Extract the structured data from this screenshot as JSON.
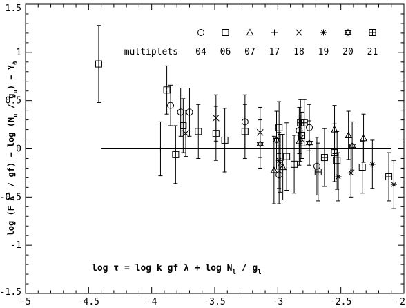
{
  "chart_data": {
    "type": "scatter",
    "xlabel": "log τ = log k gf λ + log N_l / g_l",
    "ylabel": "log (F λ³ / gf) − log (N_u / g_u) − Y₀",
    "xlim": [
      -5,
      -2
    ],
    "ylim": [
      -1.5,
      1.5
    ],
    "x_ticks": [
      -5,
      -4.5,
      -4,
      -3.5,
      -3,
      -2.5,
      -2
    ],
    "x_tick_labels": [
      "-5",
      "-4.5",
      "-4",
      "-3.5",
      "-3",
      "-2.5",
      "-2"
    ],
    "y_ticks": [
      -1.5,
      -1,
      -0.5,
      0,
      0.5,
      1,
      1.5
    ],
    "y_tick_labels": [
      "-1.5",
      "-1",
      "-0.5",
      "0",
      "0.5",
      "1",
      "1.5"
    ],
    "legend": {
      "title": "multiplets",
      "placement": "top-right",
      "entries": [
        {
          "label": "04",
          "marker": "circle"
        },
        {
          "label": "06",
          "marker": "square"
        },
        {
          "label": "07",
          "marker": "triangle"
        },
        {
          "label": "17",
          "marker": "plus"
        },
        {
          "label": "18",
          "marker": "cross"
        },
        {
          "label": "19",
          "marker": "asterisk"
        },
        {
          "label": "20",
          "marker": "star-of-david"
        },
        {
          "label": "21",
          "marker": "boxed-plus"
        }
      ]
    },
    "reference_line": {
      "y": 0,
      "x_from": -4.4,
      "x_to": -2.1
    },
    "series": [
      {
        "name": "04",
        "marker": "circle",
        "points": [
          {
            "x": -3.85,
            "y": 0.45,
            "err": 0.21
          },
          {
            "x": -3.77,
            "y": 0.38,
            "err": 0.25
          },
          {
            "x": -3.7,
            "y": 0.38,
            "err": 0.25
          },
          {
            "x": -3.26,
            "y": 0.28,
            "err": 0.28
          },
          {
            "x": -2.99,
            "y": -0.27,
            "err": 0.3
          },
          {
            "x": -2.83,
            "y": 0.19,
            "err": 0.24
          },
          {
            "x": -2.69,
            "y": -0.18,
            "err": 0.3
          },
          {
            "x": -2.75,
            "y": 0.22,
            "err": 0.24
          }
        ]
      },
      {
        "name": "06",
        "marker": "square",
        "points": [
          {
            "x": -4.42,
            "y": 0.88,
            "err": 0.4
          },
          {
            "x": -3.88,
            "y": 0.61,
            "err": 0.25
          },
          {
            "x": -3.81,
            "y": -0.06,
            "err": 0.3
          },
          {
            "x": -3.75,
            "y": 0.24,
            "err": 0.28
          },
          {
            "x": -3.63,
            "y": 0.18,
            "err": 0.28
          },
          {
            "x": -3.49,
            "y": 0.16,
            "err": 0.28
          },
          {
            "x": -3.42,
            "y": 0.09,
            "err": 0.33
          },
          {
            "x": -3.26,
            "y": 0.18,
            "err": 0.28
          },
          {
            "x": -2.99,
            "y": 0.22,
            "err": 0.27
          },
          {
            "x": -2.93,
            "y": -0.08,
            "err": 0.35
          },
          {
            "x": -2.87,
            "y": -0.16,
            "err": 0.3
          },
          {
            "x": -2.81,
            "y": 0.14,
            "err": 0.24
          },
          {
            "x": -2.55,
            "y": -0.04,
            "err": 0.3
          },
          {
            "x": -2.53,
            "y": -0.12,
            "err": 0.3
          },
          {
            "x": -2.33,
            "y": -0.19,
            "err": 0.27
          }
        ]
      },
      {
        "name": "07",
        "marker": "triangle",
        "points": [
          {
            "x": -3.03,
            "y": -0.22,
            "err": 0.35
          },
          {
            "x": -2.96,
            "y": -0.19,
            "err": 0.34
          },
          {
            "x": -2.55,
            "y": 0.2,
            "err": 0.25
          },
          {
            "x": -2.44,
            "y": 0.14,
            "err": 0.25
          },
          {
            "x": -2.32,
            "y": 0.11,
            "err": 0.25
          },
          {
            "x": -2.83,
            "y": 0.08,
            "err": 0.25
          }
        ]
      },
      {
        "name": "17",
        "marker": "plus",
        "points": [
          {
            "x": -3.93,
            "y": 0.0,
            "err": 0.28
          }
        ]
      },
      {
        "name": "18",
        "marker": "cross",
        "points": [
          {
            "x": -3.73,
            "y": 0.16,
            "err": 0.24
          },
          {
            "x": -3.49,
            "y": 0.32,
            "err": 0.24
          },
          {
            "x": -3.14,
            "y": 0.17,
            "err": 0.26
          },
          {
            "x": -2.98,
            "y": -0.15,
            "err": 0.3
          },
          {
            "x": -2.82,
            "y": 0.11,
            "err": 0.24
          }
        ]
      },
      {
        "name": "19",
        "marker": "asterisk",
        "points": [
          {
            "x": -2.99,
            "y": -0.12,
            "err": 0.29
          },
          {
            "x": -2.52,
            "y": -0.29,
            "err": 0.25
          },
          {
            "x": -2.42,
            "y": -0.25,
            "err": 0.25
          },
          {
            "x": -2.25,
            "y": -0.16,
            "err": 0.25
          },
          {
            "x": -2.08,
            "y": -0.37,
            "err": 0.25
          }
        ]
      },
      {
        "name": "20",
        "marker": "star-of-david",
        "points": [
          {
            "x": -3.14,
            "y": 0.05,
            "err": 0.25
          },
          {
            "x": -3.01,
            "y": 0.09,
            "err": 0.3
          },
          {
            "x": -2.75,
            "y": 0.06,
            "err": 0.23
          },
          {
            "x": -2.41,
            "y": 0.03,
            "err": 0.25
          }
        ]
      },
      {
        "name": "21",
        "marker": "boxed-plus",
        "points": [
          {
            "x": -2.82,
            "y": 0.27,
            "err": 0.24
          },
          {
            "x": -2.79,
            "y": 0.27,
            "err": 0.24
          },
          {
            "x": -2.68,
            "y": -0.24,
            "err": 0.3
          },
          {
            "x": -2.63,
            "y": -0.09,
            "err": 0.3
          },
          {
            "x": -2.12,
            "y": -0.29,
            "err": 0.25
          }
        ]
      }
    ]
  }
}
